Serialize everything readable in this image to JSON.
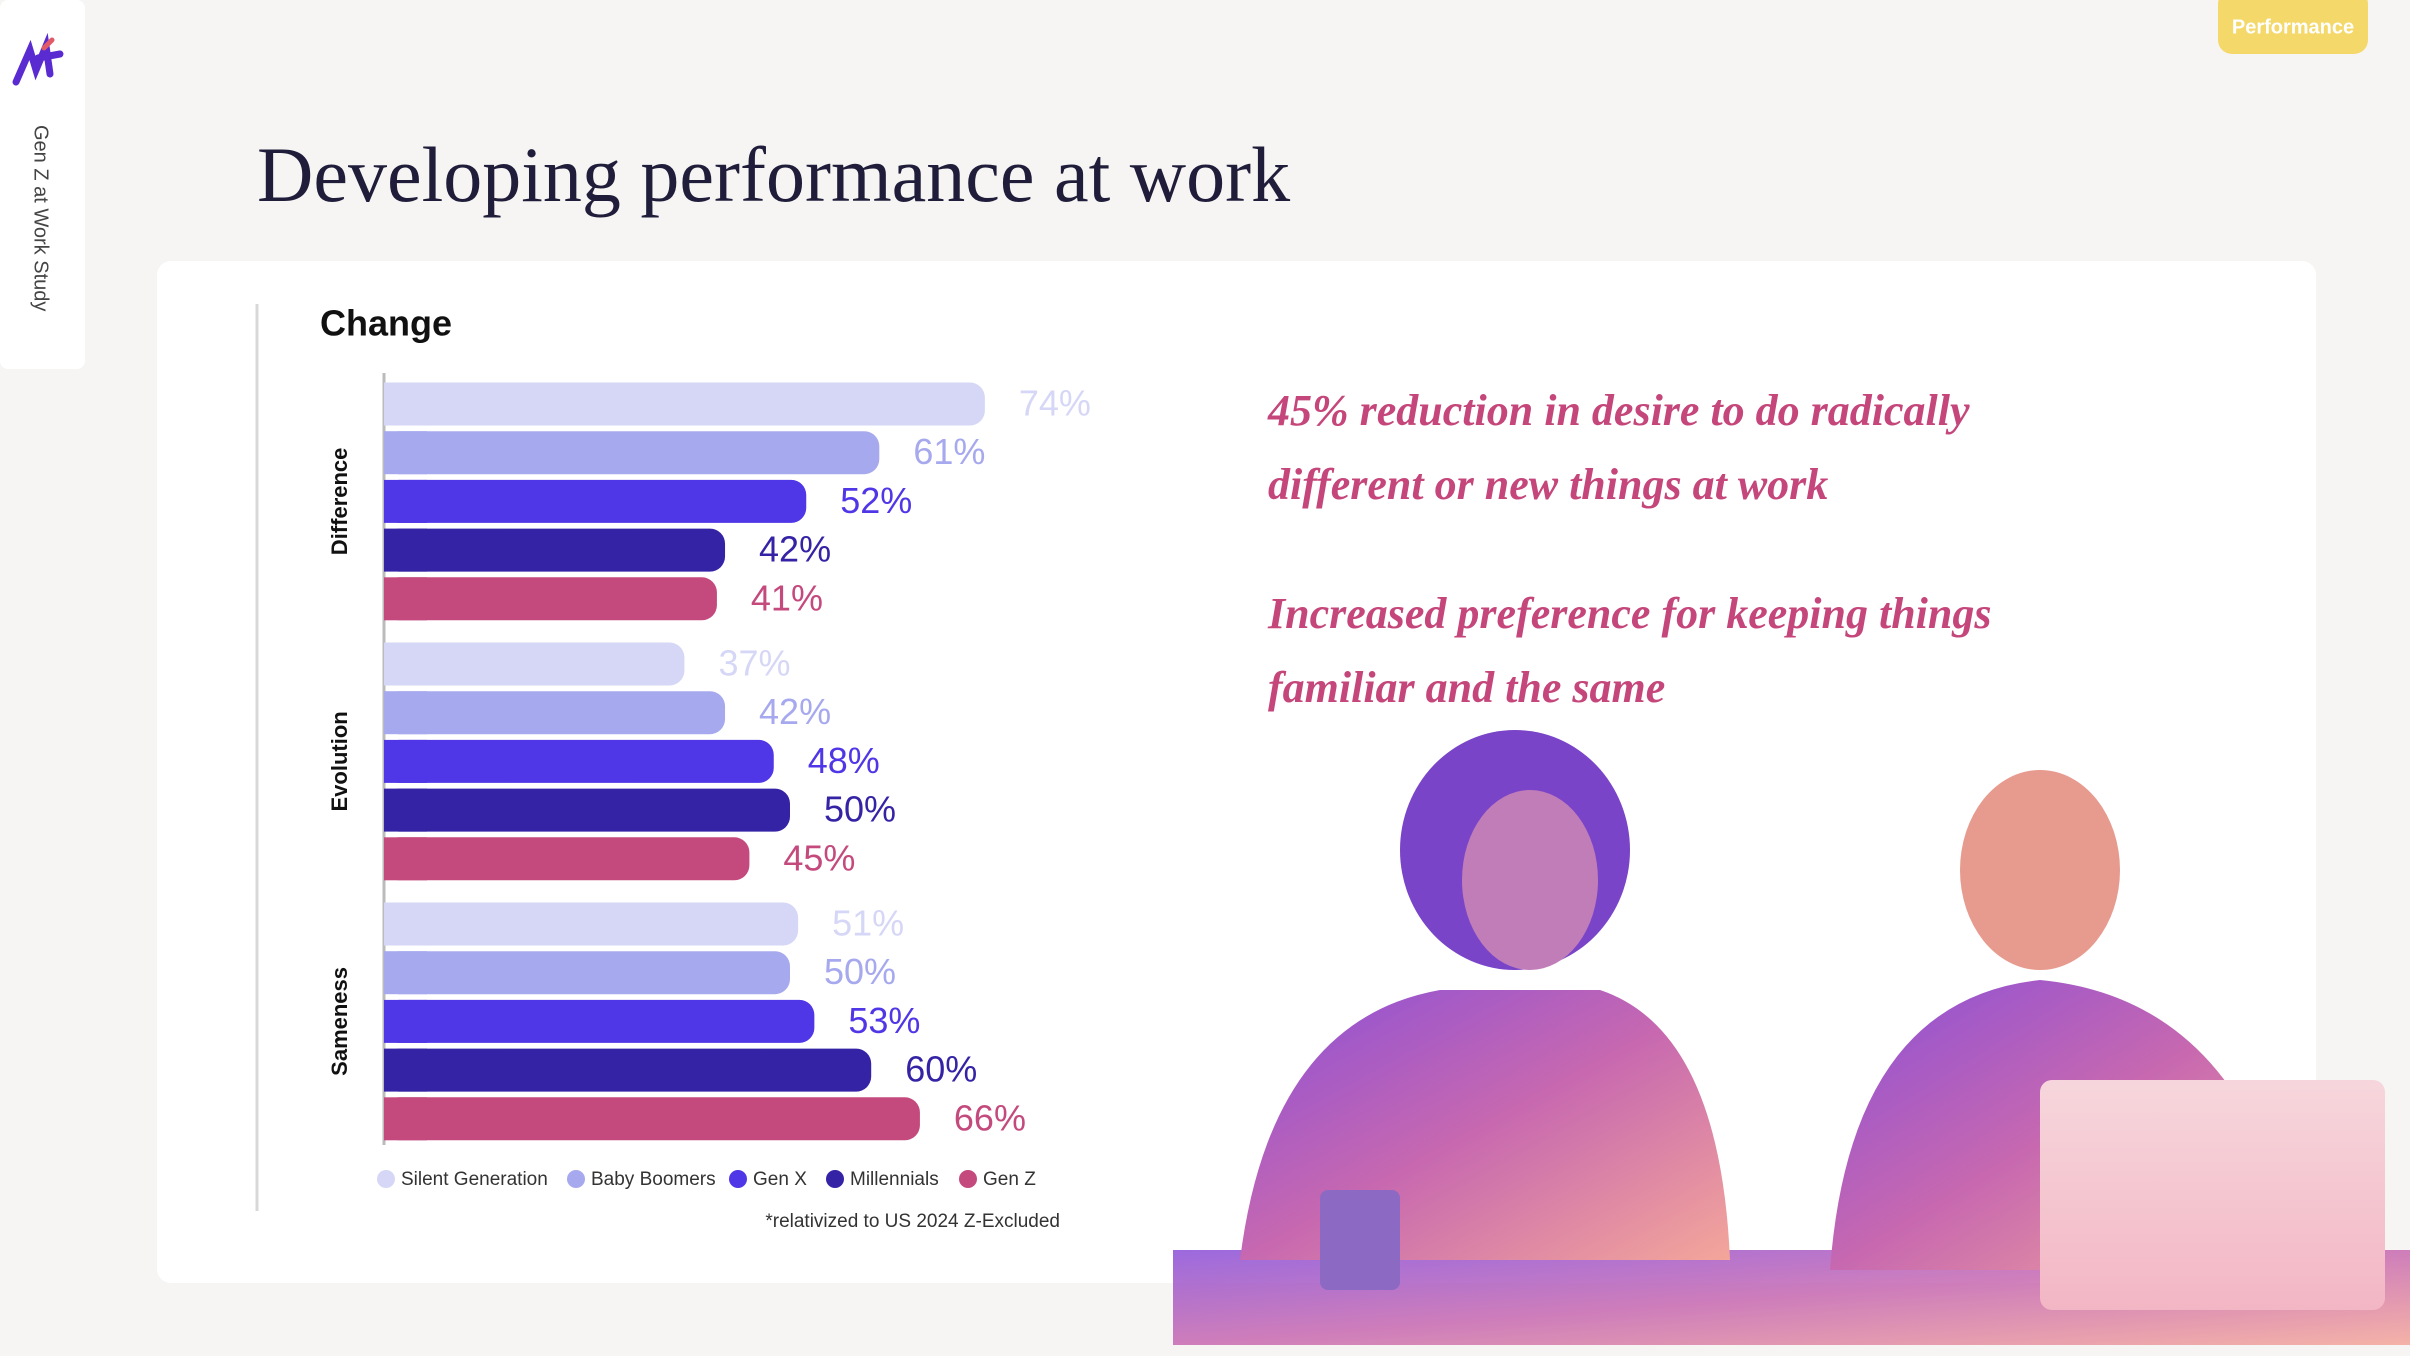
{
  "sidebar_label": "Gen Z at Work Study",
  "badge": "Performance",
  "title": "Developing performance at work",
  "chart_data": {
    "type": "hbar",
    "title": "Change",
    "categories": [
      "Difference",
      "Evolution",
      "Sameness"
    ],
    "series": [
      {
        "name": "Silent Generation",
        "color": "#d6d7f6",
        "values": [
          74,
          37,
          51
        ],
        "value_labels": [
          "74%",
          "37%",
          "51%"
        ]
      },
      {
        "name": "Baby Boomers",
        "color": "#a7a9ee",
        "values": [
          61,
          42,
          50
        ],
        "value_labels": [
          "61%",
          "42%",
          "50%"
        ]
      },
      {
        "name": "Gen X",
        "color": "#4f36e6",
        "values": [
          52,
          48,
          53
        ],
        "value_labels": [
          "52%",
          "48%",
          "53%"
        ]
      },
      {
        "name": "Millennials",
        "color": "#3523a6",
        "values": [
          42,
          50,
          60
        ],
        "value_labels": [
          "42%",
          "50%",
          "60%"
        ]
      },
      {
        "name": "Gen Z",
        "color": "#c44a7e",
        "values": [
          41,
          45,
          66
        ],
        "value_labels": [
          "41%",
          "45%",
          "66%"
        ]
      }
    ],
    "xlim": [
      0,
      100
    ],
    "legend": "bottom",
    "footnote": "*relativized to US 2024 Z-Excluded"
  },
  "callouts": [
    [
      "45% reduction in desire to do radically",
      "different or new things at work"
    ],
    [
      "Increased preference for keeping things",
      "familiar and the same"
    ]
  ]
}
